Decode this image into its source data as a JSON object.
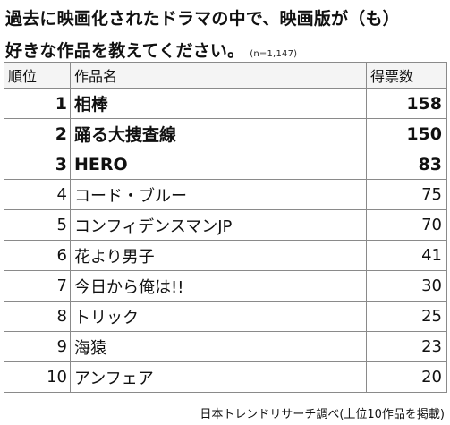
{
  "title_line1": "過去に映画化されたドラマの中で、映画版が（も）",
  "title_line2": "好きな作品を教えてください。",
  "sample_note": "(n=1,147)",
  "headers": {
    "rank": "順位",
    "title": "作品名",
    "votes": "得票数"
  },
  "source": "日本トレンドリサーチ調べ(上位10作品を掲載)",
  "chart_data": {
    "type": "table",
    "columns": [
      "順位",
      "作品名",
      "得票数"
    ],
    "rows": [
      {
        "rank": "1",
        "title": "相棒",
        "votes": "158"
      },
      {
        "rank": "2",
        "title": "踊る大捜査線",
        "votes": "150"
      },
      {
        "rank": "3",
        "title": "HERO",
        "votes": "83"
      },
      {
        "rank": "4",
        "title": "コード・ブルー",
        "votes": "75"
      },
      {
        "rank": "5",
        "title": "コンフィデンスマンJP",
        "votes": "70"
      },
      {
        "rank": "6",
        "title": "花より男子",
        "votes": "41"
      },
      {
        "rank": "7",
        "title": "今日から俺は!!",
        "votes": "30"
      },
      {
        "rank": "8",
        "title": "トリック",
        "votes": "25"
      },
      {
        "rank": "9",
        "title": "海猿",
        "votes": "23"
      },
      {
        "rank": "10",
        "title": "アンフェア",
        "votes": "20"
      }
    ],
    "highlighted_top": 3
  }
}
